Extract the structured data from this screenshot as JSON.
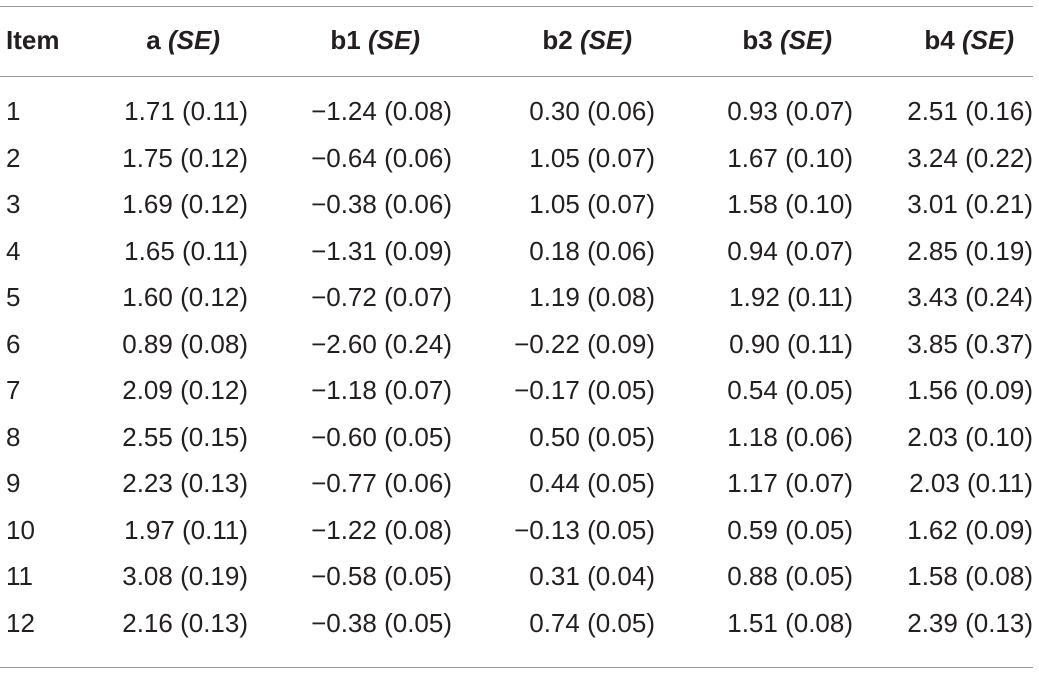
{
  "table": {
    "header": {
      "item": "Item",
      "cols": [
        {
          "name": "a",
          "se": "(SE)"
        },
        {
          "name": "b1",
          "se": "(SE)"
        },
        {
          "name": "b2",
          "se": "(SE)"
        },
        {
          "name": "b3",
          "se": "(SE)"
        },
        {
          "name": "b4",
          "se": "(SE)"
        }
      ]
    },
    "rows": [
      {
        "item": "1",
        "a": "1.71 (0.11)",
        "b1": "−1.24 (0.08)",
        "b2": "0.30 (0.06)",
        "b3": "0.93 (0.07)",
        "b4": "2.51 (0.16)"
      },
      {
        "item": "2",
        "a": "1.75 (0.12)",
        "b1": "−0.64 (0.06)",
        "b2": "1.05 (0.07)",
        "b3": "1.67 (0.10)",
        "b4": "3.24 (0.22)"
      },
      {
        "item": "3",
        "a": "1.69 (0.12)",
        "b1": "−0.38 (0.06)",
        "b2": "1.05 (0.07)",
        "b3": "1.58 (0.10)",
        "b4": "3.01 (0.21)"
      },
      {
        "item": "4",
        "a": "1.65 (0.11)",
        "b1": "−1.31 (0.09)",
        "b2": "0.18 (0.06)",
        "b3": "0.94 (0.07)",
        "b4": "2.85 (0.19)"
      },
      {
        "item": "5",
        "a": "1.60 (0.12)",
        "b1": "−0.72 (0.07)",
        "b2": "1.19 (0.08)",
        "b3": "1.92 (0.11)",
        "b4": "3.43 (0.24)"
      },
      {
        "item": "6",
        "a": "0.89 (0.08)",
        "b1": "−2.60 (0.24)",
        "b2": "−0.22 (0.09)",
        "b3": "0.90 (0.11)",
        "b4": "3.85 (0.37)"
      },
      {
        "item": "7",
        "a": "2.09 (0.12)",
        "b1": "−1.18 (0.07)",
        "b2": "−0.17 (0.05)",
        "b3": "0.54 (0.05)",
        "b4": "1.56 (0.09)"
      },
      {
        "item": "8",
        "a": "2.55 (0.15)",
        "b1": "−0.60 (0.05)",
        "b2": "0.50 (0.05)",
        "b3": "1.18 (0.06)",
        "b4": "2.03 (0.10)"
      },
      {
        "item": "9",
        "a": "2.23 (0.13)",
        "b1": "−0.77 (0.06)",
        "b2": "0.44 (0.05)",
        "b3": "1.17 (0.07)",
        "b4": "2.03 (0.11)"
      },
      {
        "item": "10",
        "a": "1.97 (0.11)",
        "b1": "−1.22 (0.08)",
        "b2": "−0.13 (0.05)",
        "b3": "0.59 (0.05)",
        "b4": "1.62 (0.09)"
      },
      {
        "item": "11",
        "a": "3.08 (0.19)",
        "b1": "−0.58 (0.05)",
        "b2": "0.31 (0.04)",
        "b3": "0.88 (0.05)",
        "b4": "1.58 (0.08)"
      },
      {
        "item": "12",
        "a": "2.16 (0.13)",
        "b1": "−0.38 (0.05)",
        "b2": "0.74 (0.05)",
        "b3": "1.51 (0.08)",
        "b4": "2.39 (0.13)"
      }
    ]
  }
}
